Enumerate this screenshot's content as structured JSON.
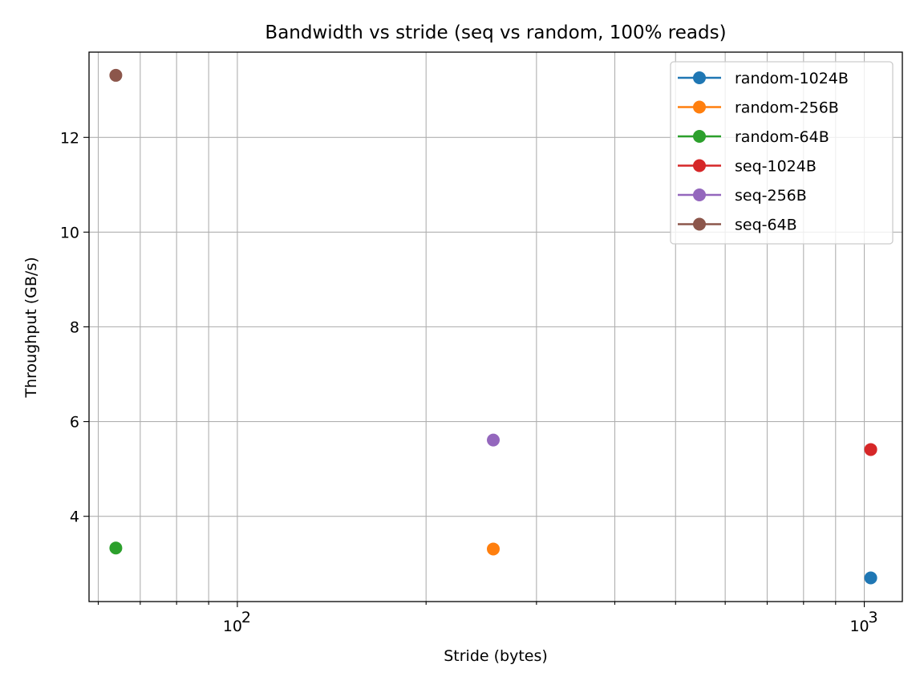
{
  "chart_data": {
    "type": "scatter",
    "title": "Bandwidth vs stride (seq vs random, 100% reads)",
    "xlabel": "Stride (bytes)",
    "ylabel": "Throughput (GB/s)",
    "xscale": "log",
    "xlim": [
      58,
      1150
    ],
    "ylim": [
      2.2,
      13.8
    ],
    "x_tick_labels": [
      {
        "value": 100,
        "base": "10",
        "exp": "2"
      },
      {
        "value": 1000,
        "base": "10",
        "exp": "3"
      }
    ],
    "y_ticks": [
      4,
      6,
      8,
      10,
      12
    ],
    "grid": true,
    "legend_position": "top-right",
    "series": [
      {
        "name": "random-1024B",
        "color": "#1f77b4",
        "points": [
          {
            "x": 1024,
            "y": 2.7
          }
        ]
      },
      {
        "name": "random-256B",
        "color": "#ff7f0e",
        "points": [
          {
            "x": 256,
            "y": 3.31
          }
        ]
      },
      {
        "name": "random-64B",
        "color": "#2ca02c",
        "points": [
          {
            "x": 64,
            "y": 3.33
          }
        ]
      },
      {
        "name": "seq-1024B",
        "color": "#d62728",
        "points": [
          {
            "x": 1024,
            "y": 5.41
          }
        ]
      },
      {
        "name": "seq-256B",
        "color": "#9467bd",
        "points": [
          {
            "x": 256,
            "y": 5.61
          }
        ]
      },
      {
        "name": "seq-64B",
        "color": "#8c564b",
        "points": [
          {
            "x": 64,
            "y": 13.31
          }
        ]
      }
    ]
  }
}
